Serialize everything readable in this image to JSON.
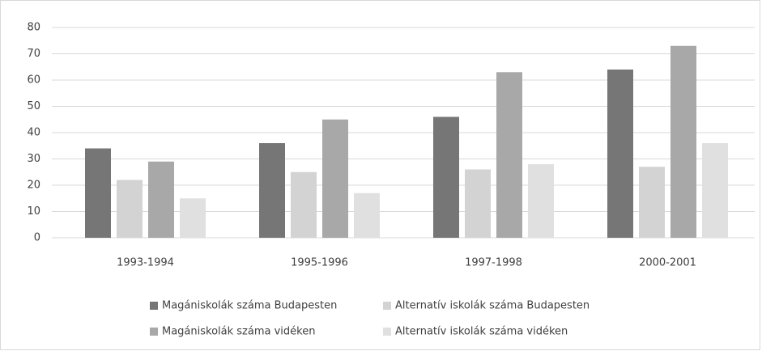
{
  "chart_data": {
    "type": "bar",
    "categories": [
      "1993-1994",
      "1995-1996",
      "1997-1998",
      "2000-2001"
    ],
    "series": [
      {
        "name": "Magániskolák száma Budapesten",
        "color": "#767676",
        "values": [
          34,
          36,
          46,
          64
        ]
      },
      {
        "name": "Alternatív iskolák száma Budapesten",
        "color": "#d3d3d3",
        "values": [
          22,
          25,
          26,
          27
        ]
      },
      {
        "name": "Magániskolák száma vidéken",
        "color": "#a8a8a8",
        "values": [
          29,
          45,
          63,
          73
        ]
      },
      {
        "name": "Alternatív iskolák száma vidéken",
        "color": "#e0e0e0",
        "values": [
          15,
          17,
          28,
          36
        ]
      }
    ],
    "ylim": [
      0,
      80
    ],
    "yticks": [
      0,
      10,
      20,
      30,
      40,
      50,
      60,
      70,
      80
    ],
    "grid": true,
    "legend": "bottom"
  }
}
